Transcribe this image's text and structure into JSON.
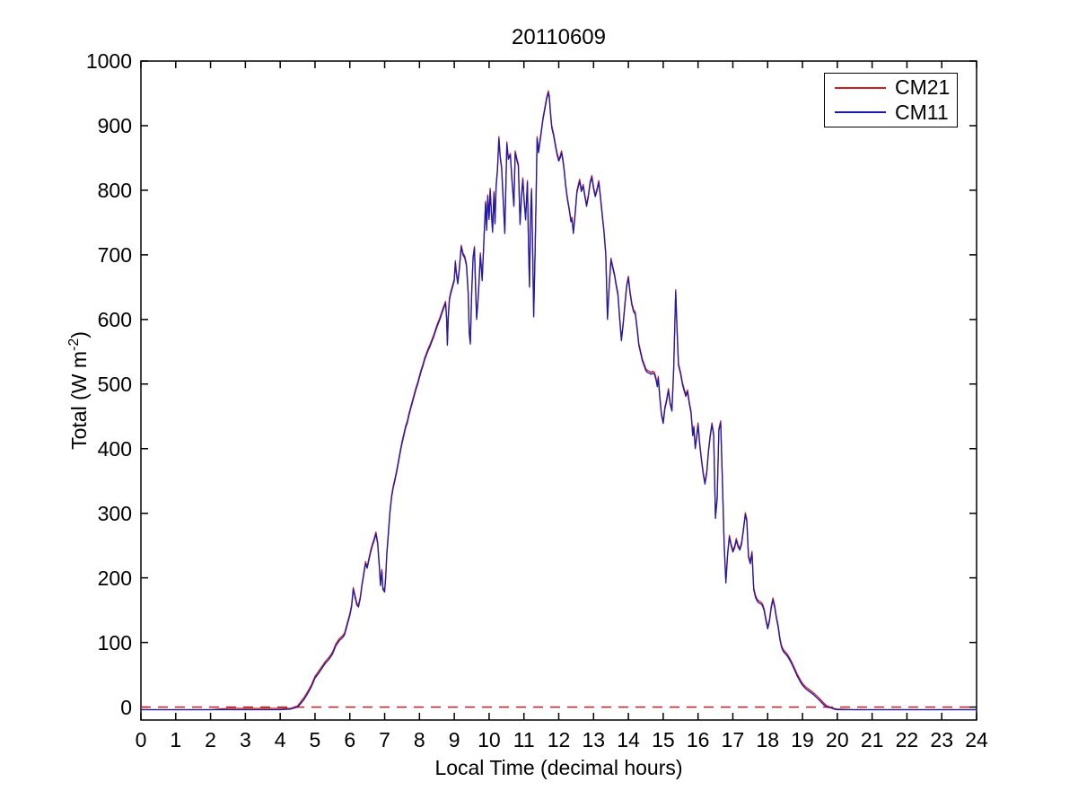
{
  "chart_data": {
    "type": "line",
    "title": "20110609",
    "xlabel": "Local Time (decimal hours)",
    "ylabel": "Total (W m^-2)",
    "ylabel_parts": {
      "prefix": "Total (W m",
      "sup": "-2",
      "suffix": ")"
    },
    "xlim": [
      0,
      24
    ],
    "ylim": [
      -20,
      1000
    ],
    "xticks": [
      0,
      1,
      2,
      3,
      4,
      5,
      6,
      7,
      8,
      9,
      10,
      11,
      12,
      13,
      14,
      15,
      16,
      17,
      18,
      19,
      20,
      21,
      22,
      23,
      24
    ],
    "yticks": [
      0,
      100,
      200,
      300,
      400,
      500,
      600,
      700,
      800,
      900,
      1000
    ],
    "grid": false,
    "legend_position": "top-right",
    "axis_color": "#000000",
    "background_color": "#ffffff",
    "zero_line": {
      "y": 0,
      "style": "dashed",
      "color": "#cc2020"
    },
    "series": [
      {
        "name": "CM21",
        "color": "#cc2020",
        "style": "solid",
        "values_column": 1
      },
      {
        "name": "CM11",
        "color": "#1a1aae",
        "style": "solid",
        "values_column": 2
      }
    ],
    "points_format": [
      "time_decimal_hours",
      "CM21_Wm2",
      "CM11_Wm2"
    ],
    "points": [
      [
        0,
        -4,
        -4
      ],
      [
        0.5,
        -4,
        -4
      ],
      [
        1,
        -4,
        -4
      ],
      [
        1.5,
        -4,
        -4
      ],
      [
        2,
        -4,
        -4
      ],
      [
        2.5,
        -2,
        -4
      ],
      [
        3,
        -2,
        -4
      ],
      [
        3.5,
        -2,
        -4
      ],
      [
        4,
        -2,
        -4
      ],
      [
        4.3,
        -2,
        -3
      ],
      [
        4.5,
        2,
        0
      ],
      [
        4.6,
        9,
        6
      ],
      [
        4.7,
        16,
        13
      ],
      [
        4.8,
        25,
        22
      ],
      [
        4.9,
        35,
        32
      ],
      [
        5,
        48,
        45
      ],
      [
        5.1,
        55,
        52
      ],
      [
        5.2,
        63,
        60
      ],
      [
        5.3,
        71,
        68
      ],
      [
        5.4,
        77,
        74
      ],
      [
        5.5,
        85,
        82
      ],
      [
        5.6,
        98,
        95
      ],
      [
        5.7,
        106,
        103
      ],
      [
        5.8,
        111,
        108
      ],
      [
        5.85,
        115,
        112
      ],
      [
        5.9,
        125,
        122
      ],
      [
        5.95,
        135,
        132
      ],
      [
        6,
        145,
        142
      ],
      [
        6.05,
        158,
        155
      ],
      [
        6.1,
        185,
        182
      ],
      [
        6.15,
        173,
        170
      ],
      [
        6.2,
        161,
        158
      ],
      [
        6.25,
        158,
        155
      ],
      [
        6.3,
        171,
        168
      ],
      [
        6.35,
        191,
        188
      ],
      [
        6.4,
        208,
        205
      ],
      [
        6.45,
        225,
        222
      ],
      [
        6.5,
        218,
        215
      ],
      [
        6.55,
        231,
        228
      ],
      [
        6.6,
        243,
        240
      ],
      [
        6.65,
        253,
        250
      ],
      [
        6.7,
        261,
        258
      ],
      [
        6.75,
        271,
        268
      ],
      [
        6.8,
        255,
        252
      ],
      [
        6.85,
        218,
        215
      ],
      [
        6.88,
        191,
        188
      ],
      [
        6.92,
        213,
        210
      ],
      [
        6.95,
        185,
        182
      ],
      [
        7,
        181,
        178
      ],
      [
        7.03,
        203,
        200
      ],
      [
        7.06,
        238,
        235
      ],
      [
        7.1,
        265,
        262
      ],
      [
        7.15,
        303,
        300
      ],
      [
        7.2,
        328,
        325
      ],
      [
        7.25,
        343,
        340
      ],
      [
        7.3,
        355,
        352
      ],
      [
        7.35,
        368,
        365
      ],
      [
        7.4,
        383,
        380
      ],
      [
        7.45,
        398,
        395
      ],
      [
        7.5,
        411,
        408
      ],
      [
        7.55,
        423,
        420
      ],
      [
        7.6,
        435,
        432
      ],
      [
        7.65,
        443,
        440
      ],
      [
        7.7,
        455,
        452
      ],
      [
        7.75,
        465,
        462
      ],
      [
        7.8,
        475,
        472
      ],
      [
        7.85,
        485,
        482
      ],
      [
        7.9,
        495,
        492
      ],
      [
        7.95,
        503,
        500
      ],
      [
        8,
        513,
        510
      ],
      [
        8.05,
        523,
        520
      ],
      [
        8.1,
        531,
        528
      ],
      [
        8.15,
        541,
        538
      ],
      [
        8.2,
        548,
        545
      ],
      [
        8.25,
        555,
        552
      ],
      [
        8.3,
        561,
        558
      ],
      [
        8.35,
        568,
        565
      ],
      [
        8.4,
        575,
        572
      ],
      [
        8.45,
        583,
        580
      ],
      [
        8.5,
        591,
        588
      ],
      [
        8.55,
        598,
        595
      ],
      [
        8.6,
        605,
        602
      ],
      [
        8.65,
        613,
        610
      ],
      [
        8.7,
        621,
        618
      ],
      [
        8.75,
        628,
        625
      ],
      [
        8.78,
        603,
        600
      ],
      [
        8.8,
        563,
        560
      ],
      [
        8.83,
        608,
        605
      ],
      [
        8.86,
        633,
        630
      ],
      [
        8.9,
        643,
        640
      ],
      [
        8.95,
        653,
        650
      ],
      [
        9,
        663,
        660
      ],
      [
        9.03,
        691,
        688
      ],
      [
        9.06,
        673,
        670
      ],
      [
        9.1,
        658,
        655
      ],
      [
        9.14,
        678,
        675
      ],
      [
        9.2,
        715,
        712
      ],
      [
        9.25,
        703,
        700
      ],
      [
        9.3,
        698,
        695
      ],
      [
        9.35,
        686,
        683
      ],
      [
        9.4,
        643,
        640
      ],
      [
        9.43,
        581,
        578
      ],
      [
        9.46,
        565,
        562
      ],
      [
        9.5,
        643,
        640
      ],
      [
        9.54,
        698,
        695
      ],
      [
        9.58,
        713,
        710
      ],
      [
        9.61,
        653,
        650
      ],
      [
        9.64,
        603,
        600
      ],
      [
        9.67,
        623,
        620
      ],
      [
        9.7,
        648,
        645
      ],
      [
        9.75,
        703,
        700
      ],
      [
        9.8,
        663,
        660
      ],
      [
        9.85,
        723,
        720
      ],
      [
        9.9,
        783,
        780
      ],
      [
        9.93,
        741,
        738
      ],
      [
        9.96,
        793,
        790
      ],
      [
        10,
        758,
        755
      ],
      [
        10.03,
        803,
        800
      ],
      [
        10.07,
        763,
        760
      ],
      [
        10.1,
        738,
        735
      ],
      [
        10.14,
        798,
        795
      ],
      [
        10.17,
        751,
        748
      ],
      [
        10.2,
        808,
        805
      ],
      [
        10.24,
        833,
        830
      ],
      [
        10.28,
        883,
        880
      ],
      [
        10.32,
        853,
        850
      ],
      [
        10.36,
        836,
        833
      ],
      [
        10.4,
        793,
        790
      ],
      [
        10.45,
        736,
        733
      ],
      [
        10.51,
        875,
        872
      ],
      [
        10.55,
        851,
        848
      ],
      [
        10.61,
        857,
        854
      ],
      [
        10.65,
        823,
        820
      ],
      [
        10.71,
        778,
        775
      ],
      [
        10.75,
        861,
        858
      ],
      [
        10.8,
        848,
        845
      ],
      [
        10.84,
        841,
        838
      ],
      [
        10.89,
        750,
        747
      ],
      [
        10.93,
        793,
        790
      ],
      [
        10.97,
        819,
        816
      ],
      [
        11.01,
        783,
        780
      ],
      [
        11.05,
        757,
        754
      ],
      [
        11.1,
        815,
        812
      ],
      [
        11.13,
        718,
        715
      ],
      [
        11.16,
        653,
        650
      ],
      [
        11.19,
        763,
        760
      ],
      [
        11.22,
        803,
        800
      ],
      [
        11.25,
        712,
        709
      ],
      [
        11.28,
        607,
        604
      ],
      [
        11.32,
        703,
        700
      ],
      [
        11.35,
        793,
        790
      ],
      [
        11.38,
        883,
        880
      ],
      [
        11.42,
        861,
        858
      ],
      [
        11.46,
        878,
        875
      ],
      [
        11.5,
        893,
        890
      ],
      [
        11.55,
        913,
        910
      ],
      [
        11.6,
        928,
        925
      ],
      [
        11.65,
        943,
        940
      ],
      [
        11.7,
        954,
        951
      ],
      [
        11.73,
        946,
        943
      ],
      [
        11.76,
        923,
        920
      ],
      [
        11.8,
        900,
        897
      ],
      [
        11.85,
        888,
        885
      ],
      [
        11.9,
        873,
        870
      ],
      [
        11.95,
        858,
        855
      ],
      [
        12,
        848,
        845
      ],
      [
        12.04,
        853,
        850
      ],
      [
        12.08,
        861,
        858
      ],
      [
        12.12,
        848,
        845
      ],
      [
        12.16,
        831,
        828
      ],
      [
        12.2,
        808,
        805
      ],
      [
        12.25,
        788,
        785
      ],
      [
        12.3,
        773,
        770
      ],
      [
        12.35,
        754,
        751
      ],
      [
        12.38,
        758,
        755
      ],
      [
        12.42,
        736,
        733
      ],
      [
        12.47,
        764,
        761
      ],
      [
        12.52,
        799,
        796
      ],
      [
        12.56,
        808,
        805
      ],
      [
        12.6,
        817,
        814
      ],
      [
        12.65,
        801,
        798
      ],
      [
        12.7,
        809,
        806
      ],
      [
        12.75,
        793,
        790
      ],
      [
        12.8,
        778,
        775
      ],
      [
        12.85,
        793,
        790
      ],
      [
        12.9,
        813,
        810
      ],
      [
        12.95,
        823,
        820
      ],
      [
        13,
        805,
        802
      ],
      [
        13.05,
        793,
        790
      ],
      [
        13.1,
        803,
        800
      ],
      [
        13.15,
        815,
        812
      ],
      [
        13.2,
        791,
        788
      ],
      [
        13.25,
        763,
        760
      ],
      [
        13.3,
        738,
        735
      ],
      [
        13.35,
        703,
        700
      ],
      [
        13.4,
        603,
        600
      ],
      [
        13.45,
        653,
        650
      ],
      [
        13.5,
        695,
        692
      ],
      [
        13.55,
        683,
        680
      ],
      [
        13.6,
        671,
        668
      ],
      [
        13.65,
        655,
        652
      ],
      [
        13.7,
        641,
        638
      ],
      [
        13.75,
        603,
        600
      ],
      [
        13.8,
        570,
        567
      ],
      [
        13.85,
        595,
        592
      ],
      [
        13.9,
        625,
        622
      ],
      [
        13.95,
        653,
        650
      ],
      [
        14,
        667,
        664
      ],
      [
        14.05,
        643,
        640
      ],
      [
        14.1,
        625,
        622
      ],
      [
        14.15,
        615,
        612
      ],
      [
        14.2,
        611,
        608
      ],
      [
        14.25,
        588,
        585
      ],
      [
        14.3,
        563,
        560
      ],
      [
        14.35,
        551,
        548
      ],
      [
        14.4,
        539,
        536
      ],
      [
        14.45,
        532,
        529
      ],
      [
        14.5,
        524,
        521
      ],
      [
        14.55,
        521,
        518
      ],
      [
        14.6,
        520,
        517
      ],
      [
        14.65,
        518,
        515
      ],
      [
        14.7,
        520,
        517
      ],
      [
        14.75,
        518,
        515
      ],
      [
        14.8,
        508,
        505
      ],
      [
        14.83,
        499,
        496
      ],
      [
        14.86,
        512,
        509
      ],
      [
        14.9,
        483,
        480
      ],
      [
        14.95,
        455,
        452
      ],
      [
        15,
        442,
        439
      ],
      [
        15.05,
        465,
        462
      ],
      [
        15.1,
        477,
        474
      ],
      [
        15.15,
        493,
        490
      ],
      [
        15.2,
        472,
        469
      ],
      [
        15.25,
        461,
        458
      ],
      [
        15.3,
        523,
        520
      ],
      [
        15.36,
        646,
        643
      ],
      [
        15.4,
        583,
        580
      ],
      [
        15.44,
        532,
        529
      ],
      [
        15.5,
        518,
        515
      ],
      [
        15.55,
        503,
        500
      ],
      [
        15.6,
        493,
        490
      ],
      [
        15.65,
        484,
        481
      ],
      [
        15.7,
        491,
        488
      ],
      [
        15.75,
        472,
        469
      ],
      [
        15.8,
        458,
        455
      ],
      [
        15.85,
        423,
        420
      ],
      [
        15.88,
        435,
        432
      ],
      [
        15.92,
        403,
        400
      ],
      [
        15.96,
        419,
        416
      ],
      [
        16,
        440,
        437
      ],
      [
        16.05,
        408,
        405
      ],
      [
        16.1,
        385,
        382
      ],
      [
        16.15,
        363,
        360
      ],
      [
        16.2,
        348,
        345
      ],
      [
        16.25,
        365,
        362
      ],
      [
        16.3,
        398,
        395
      ],
      [
        16.35,
        421,
        418
      ],
      [
        16.4,
        440,
        437
      ],
      [
        16.45,
        423,
        420
      ],
      [
        16.5,
        295,
        292
      ],
      [
        16.55,
        325,
        322
      ],
      [
        16.6,
        431,
        428
      ],
      [
        16.65,
        443,
        440
      ],
      [
        16.7,
        353,
        350
      ],
      [
        16.75,
        253,
        250
      ],
      [
        16.8,
        195,
        192
      ],
      [
        16.85,
        238,
        235
      ],
      [
        16.9,
        266,
        263
      ],
      [
        16.95,
        253,
        250
      ],
      [
        17,
        243,
        240
      ],
      [
        17.05,
        249,
        246
      ],
      [
        17.1,
        261,
        258
      ],
      [
        17.15,
        251,
        248
      ],
      [
        17.2,
        246,
        243
      ],
      [
        17.25,
        255,
        252
      ],
      [
        17.3,
        275,
        272
      ],
      [
        17.36,
        301,
        298
      ],
      [
        17.4,
        291,
        288
      ],
      [
        17.45,
        235,
        232
      ],
      [
        17.5,
        225,
        222
      ],
      [
        17.55,
        241,
        238
      ],
      [
        17.6,
        185,
        182
      ],
      [
        17.65,
        173,
        170
      ],
      [
        17.7,
        167,
        164
      ],
      [
        17.75,
        164,
        161
      ],
      [
        17.8,
        163,
        160
      ],
      [
        17.85,
        160,
        157
      ],
      [
        17.9,
        152,
        149
      ],
      [
        17.95,
        137,
        134
      ],
      [
        18,
        124,
        121
      ],
      [
        18.05,
        135,
        132
      ],
      [
        18.1,
        155,
        152
      ],
      [
        18.15,
        169,
        166
      ],
      [
        18.2,
        158,
        155
      ],
      [
        18.25,
        141,
        138
      ],
      [
        18.3,
        127,
        124
      ],
      [
        18.35,
        108,
        105
      ],
      [
        18.4,
        95,
        92
      ],
      [
        18.45,
        89,
        86
      ],
      [
        18.5,
        86,
        83
      ],
      [
        18.55,
        83,
        80
      ],
      [
        18.6,
        79,
        76
      ],
      [
        18.65,
        74,
        71
      ],
      [
        18.7,
        69,
        66
      ],
      [
        18.75,
        63,
        60
      ],
      [
        18.8,
        57,
        54
      ],
      [
        18.85,
        51,
        48
      ],
      [
        18.9,
        46,
        43
      ],
      [
        18.95,
        41,
        38
      ],
      [
        19,
        37,
        34
      ],
      [
        19.1,
        31,
        28
      ],
      [
        19.2,
        27,
        24
      ],
      [
        19.3,
        23,
        20
      ],
      [
        19.4,
        18,
        15
      ],
      [
        19.5,
        13,
        10
      ],
      [
        19.6,
        7,
        4
      ],
      [
        19.7,
        2,
        0
      ],
      [
        19.8,
        0,
        -1
      ],
      [
        19.9,
        -2,
        -3
      ],
      [
        20,
        -3,
        -4
      ],
      [
        20.5,
        -4,
        -4
      ],
      [
        21,
        -4,
        -4
      ],
      [
        21.5,
        -4,
        -4
      ],
      [
        22,
        -4,
        -4
      ],
      [
        22.5,
        -4,
        -4
      ],
      [
        23,
        -4,
        -4
      ],
      [
        23.5,
        -4,
        -4
      ],
      [
        24,
        -4,
        -4
      ]
    ]
  }
}
